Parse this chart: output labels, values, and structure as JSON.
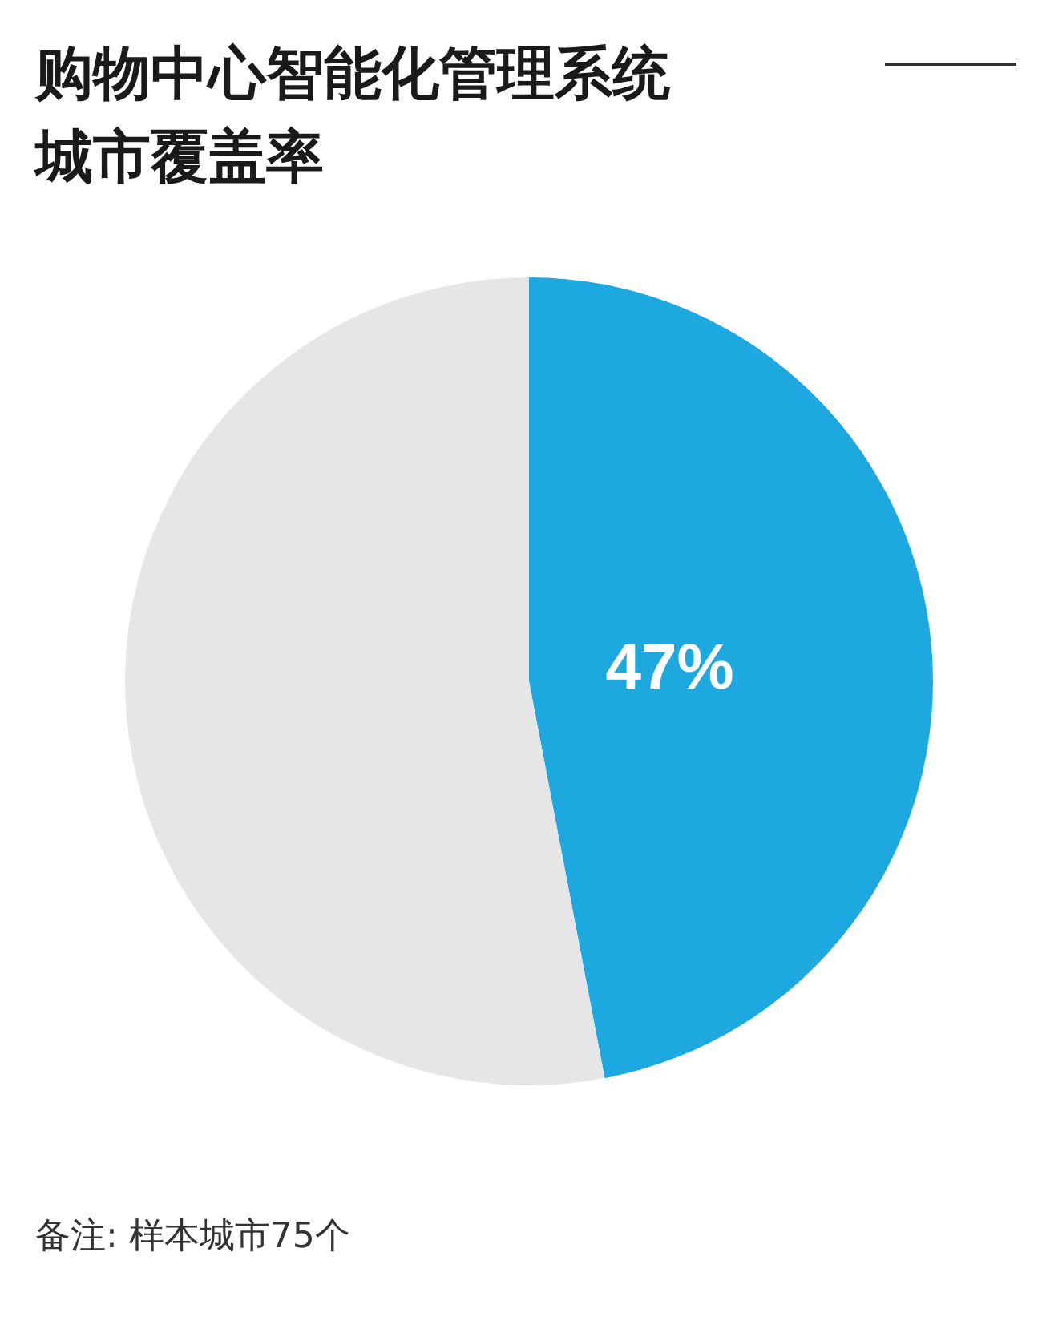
{
  "chart_data": {
    "type": "pie",
    "title": "购物中心智能化管理系统城市覆盖率",
    "categories": [
      null,
      null
    ],
    "values": [
      47,
      53
    ],
    "colors": [
      "#1ea8e0",
      "#e6e6e6"
    ],
    "value_labels": [
      "47%",
      null
    ],
    "annotations": [
      "备注: 样本城市75个"
    ]
  }
}
